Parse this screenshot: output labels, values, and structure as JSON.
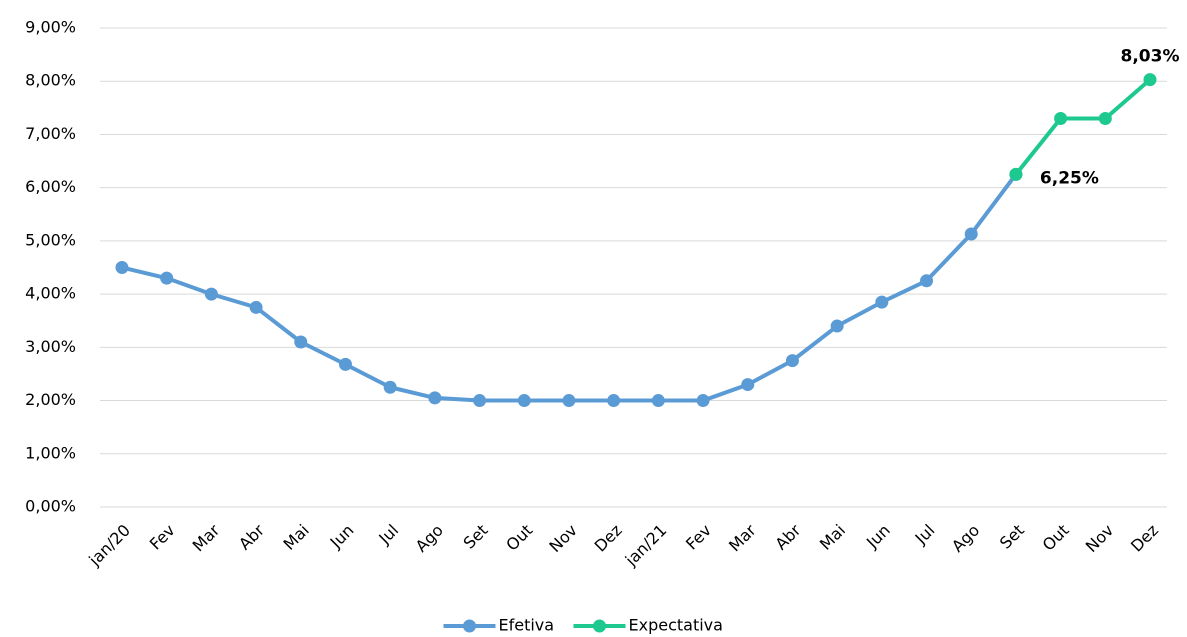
{
  "chart_data": {
    "type": "line",
    "categories": [
      "jan/20",
      "Fev",
      "Mar",
      "Abr",
      "Mai",
      "Jun",
      "Jul",
      "Ago",
      "Set",
      "Out",
      "Nov",
      "Dez",
      "jan/21",
      "Fev",
      "Mar",
      "Abr",
      "Mai",
      "Jun",
      "Jul",
      "Ago",
      "Set",
      "Out",
      "Nov",
      "Dez"
    ],
    "series": [
      {
        "name": "Efetiva",
        "color": "#5b9bd5",
        "values": [
          4.5,
          4.3,
          4.0,
          3.75,
          3.1,
          2.68,
          2.25,
          2.05,
          2.0,
          2.0,
          2.0,
          2.0,
          2.0,
          2.0,
          2.3,
          2.75,
          3.4,
          3.85,
          4.25,
          5.13,
          6.25,
          null,
          null,
          null
        ]
      },
      {
        "name": "Expectativa",
        "color": "#1ec98f",
        "values": [
          null,
          null,
          null,
          null,
          null,
          null,
          null,
          null,
          null,
          null,
          null,
          null,
          null,
          null,
          null,
          null,
          null,
          null,
          null,
          null,
          6.25,
          7.3,
          7.3,
          8.03
        ],
        "value_labels": [
          null,
          null,
          null,
          null,
          null,
          null,
          null,
          null,
          null,
          null,
          null,
          null,
          null,
          null,
          null,
          null,
          null,
          null,
          null,
          null,
          "6,25%",
          null,
          null,
          "8,03%"
        ]
      }
    ],
    "ylim": [
      0,
      9
    ],
    "yticks": [
      {
        "value": 0,
        "label": "0,00%"
      },
      {
        "value": 1,
        "label": "1,00%"
      },
      {
        "value": 2,
        "label": "2,00%"
      },
      {
        "value": 3,
        "label": "3,00%"
      },
      {
        "value": 4,
        "label": "4,00%"
      },
      {
        "value": 5,
        "label": "5,00%"
      },
      {
        "value": 6,
        "label": "6,00%"
      },
      {
        "value": 7,
        "label": "7,00%"
      },
      {
        "value": 8,
        "label": "8,00%"
      },
      {
        "value": 9,
        "label": "9,00%"
      }
    ],
    "grid": true,
    "legend": "bottom"
  }
}
